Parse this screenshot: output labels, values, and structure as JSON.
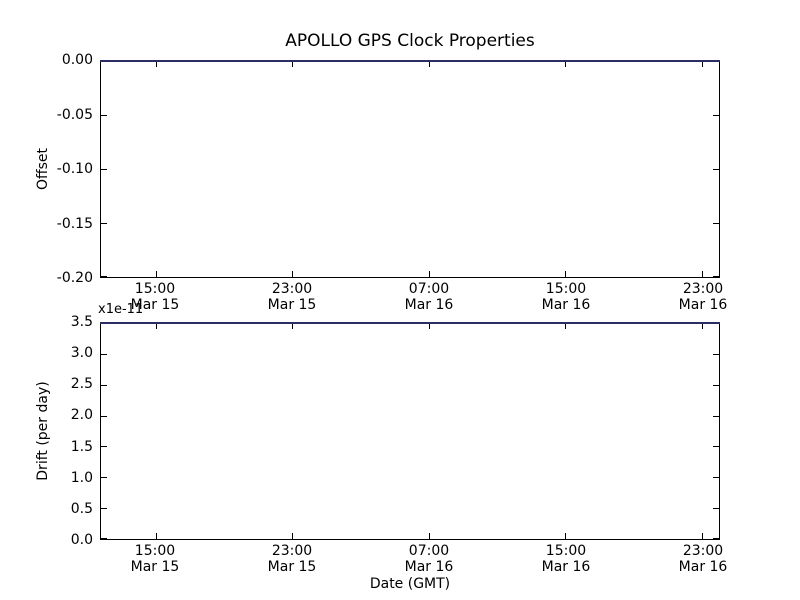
{
  "figure_title": "APOLLO GPS Clock Properties",
  "colors": {
    "background": "#ffffff",
    "axis": "#000000",
    "text": "#000000",
    "series_line_rendered": "#2d2d66"
  },
  "chart_data": [
    {
      "type": "line",
      "subplot": "top",
      "title": "APOLLO GPS Clock Properties",
      "xlabel": "",
      "ylabel": "Offset",
      "ylim": [
        -0.2,
        0.0
      ],
      "yticks": [
        0.0,
        -0.05,
        -0.1,
        -0.15,
        -0.2
      ],
      "ytick_labels": [
        "0.00",
        "-0.05",
        "-0.10",
        "-0.15",
        "-0.20"
      ],
      "xticks": [
        {
          "time": "15:00",
          "date": "Mar 15"
        },
        {
          "time": "23:00",
          "date": "Mar 15"
        },
        {
          "time": "07:00",
          "date": "Mar 16"
        },
        {
          "time": "15:00",
          "date": "Mar 16"
        },
        {
          "time": "23:00",
          "date": "Mar 16"
        }
      ],
      "grid": false,
      "legend": false,
      "series": [
        {
          "name": "offset",
          "color": "#2d2d66",
          "y_constant": 0.0,
          "description": "flat horizontal line at y = 0.00 coinciding with the top spine, spanning the full x-axis"
        }
      ]
    },
    {
      "type": "line",
      "subplot": "bottom",
      "xlabel": "Date (GMT)",
      "ylabel": "Drift (per day)",
      "y_multiplier_text": "x1e-11",
      "ylim": [
        0.0,
        3.5
      ],
      "yticks": [
        3.5,
        3.0,
        2.5,
        2.0,
        1.5,
        1.0,
        0.5,
        0.0
      ],
      "ytick_labels": [
        "3.5",
        "3.0",
        "2.5",
        "2.0",
        "1.5",
        "1.0",
        "0.5",
        "0.0"
      ],
      "xticks": [
        {
          "time": "15:00",
          "date": "Mar 15"
        },
        {
          "time": "23:00",
          "date": "Mar 15"
        },
        {
          "time": "07:00",
          "date": "Mar 16"
        },
        {
          "time": "15:00",
          "date": "Mar 16"
        },
        {
          "time": "23:00",
          "date": "Mar 16"
        }
      ],
      "grid": false,
      "legend": false,
      "series": [
        {
          "name": "drift",
          "color": "#2d2d66",
          "y_constant": 3.5,
          "description": "flat horizontal line at y = 3.5e-11 coinciding with the top spine, spanning the full x-axis"
        }
      ]
    }
  ]
}
